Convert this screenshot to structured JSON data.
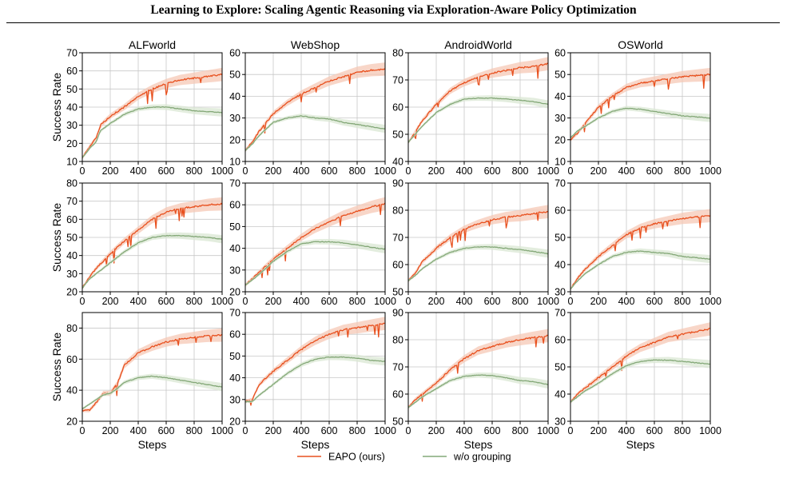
{
  "page": {
    "title": "Learning to Explore: Scaling Agentic Reasoning via Exploration-Aware Policy Optimization"
  },
  "colors": {
    "eapo": "#e8501e",
    "eapo_band": "#f6c8b6",
    "baseline": "#84a878",
    "baseline_band": "#dae7d3",
    "grid": "#c8c8c8"
  },
  "chart_data": {
    "type": "line",
    "layout": "grid 3 rows x 4 columns",
    "column_titles": [
      "ALFworld",
      "WebShop",
      "AndroidWorld",
      "OSWorld"
    ],
    "ylabel": "Success Rate",
    "xlabel": "Steps",
    "xlim": [
      0,
      1000
    ],
    "xticks": [
      0,
      200,
      400,
      600,
      800,
      1000
    ],
    "grid": true,
    "legend": {
      "placement": "bottom-center",
      "entries": [
        "EAPO (ours)",
        "w/o grouping"
      ]
    },
    "panels": [
      {
        "row": 0,
        "col": 0,
        "title": "ALFworld",
        "ylim": [
          10,
          70
        ],
        "yticks": [
          10,
          20,
          30,
          40,
          50,
          60,
          70
        ],
        "series": [
          {
            "name": "EAPO (ours)",
            "x": [
              0,
              50,
              100,
              130,
              200,
              300,
              400,
              500,
              600,
              700,
              800,
              900,
              1000
            ],
            "y": [
              12,
              18,
              23,
              30,
              35,
              40,
              46,
              50,
              53,
              55,
              56,
              57,
              58
            ]
          },
          {
            "name": "w/o grouping",
            "x": [
              0,
              50,
              100,
              130,
              200,
              300,
              400,
              500,
              600,
              700,
              800,
              900,
              1000
            ],
            "y": [
              12,
              17,
              21,
              27,
              31,
              36,
              39,
              40,
              40,
              39,
              38,
              37.5,
              37
            ]
          }
        ]
      },
      {
        "row": 0,
        "col": 1,
        "title": "WebShop",
        "ylim": [
          10,
          60
        ],
        "yticks": [
          10,
          20,
          30,
          40,
          50,
          60
        ],
        "series": [
          {
            "name": "EAPO (ours)",
            "x": [
              0,
              50,
              100,
              200,
              300,
              400,
              500,
              600,
              700,
              800,
              900,
              1000
            ],
            "y": [
              15,
              19,
              24,
              32,
              37,
              41,
              44,
              47,
              49,
              51,
              52,
              52.5
            ]
          },
          {
            "name": "w/o grouping",
            "x": [
              0,
              50,
              100,
              200,
              300,
              400,
              500,
              600,
              700,
              800,
              900,
              1000
            ],
            "y": [
              15,
              18,
              22,
              28,
              30,
              31,
              30,
              29.5,
              28,
              27,
              26,
              25
            ]
          }
        ]
      },
      {
        "row": 0,
        "col": 2,
        "title": "AndroidWorld",
        "ylim": [
          40,
          80
        ],
        "yticks": [
          40,
          50,
          60,
          70,
          80
        ],
        "series": [
          {
            "name": "EAPO (ours)",
            "x": [
              0,
              50,
              100,
              200,
              300,
              400,
              500,
              600,
              700,
              800,
              900,
              1000
            ],
            "y": [
              47,
              51,
              55,
              61,
              66,
              69,
              71,
              72.5,
              73.5,
              74.5,
              75,
              76
            ]
          },
          {
            "name": "w/o grouping",
            "x": [
              0,
              50,
              100,
              200,
              300,
              400,
              500,
              600,
              700,
              800,
              900,
              1000
            ],
            "y": [
              47,
              50,
              53,
              58,
              61,
              63,
              63.3,
              63.3,
              63,
              62.5,
              62,
              61
            ]
          }
        ]
      },
      {
        "row": 0,
        "col": 3,
        "title": "OSWorld",
        "ylim": [
          10,
          60
        ],
        "yticks": [
          10,
          20,
          30,
          40,
          50,
          60
        ],
        "series": [
          {
            "name": "EAPO (ours)",
            "x": [
              0,
              50,
              100,
              200,
              300,
              400,
              500,
              600,
              700,
              800,
              900,
              1000
            ],
            "y": [
              20,
              23,
              27,
              35,
              40,
              44,
              46,
              47,
              48,
              49,
              49.5,
              50
            ]
          },
          {
            "name": "w/o grouping",
            "x": [
              0,
              50,
              100,
              200,
              300,
              400,
              500,
              600,
              700,
              800,
              900,
              1000
            ],
            "y": [
              21,
              24,
              26,
              30,
              33,
              34.5,
              34,
              33,
              32,
              31,
              30.5,
              30
            ]
          }
        ]
      },
      {
        "row": 1,
        "col": 0,
        "title": "ALFworld",
        "ylim": [
          20,
          80
        ],
        "yticks": [
          20,
          30,
          40,
          50,
          60,
          70,
          80
        ],
        "series": [
          {
            "name": "EAPO (ours)",
            "x": [
              0,
              50,
              100,
              200,
              300,
              400,
              500,
              600,
              700,
              800,
              900,
              1000
            ],
            "y": [
              22,
              28,
              33,
              41,
              48,
              54,
              60,
              64,
              66,
              67,
              68,
              68.5
            ]
          },
          {
            "name": "w/o grouping",
            "x": [
              0,
              50,
              100,
              200,
              300,
              400,
              500,
              600,
              700,
              800,
              900,
              1000
            ],
            "y": [
              22,
              27,
              30,
              36,
              42,
              47,
              50,
              51,
              51,
              50.5,
              50,
              49
            ]
          }
        ]
      },
      {
        "row": 1,
        "col": 1,
        "title": "WebShop",
        "ylim": [
          20,
          70
        ],
        "yticks": [
          20,
          30,
          40,
          50,
          60,
          70
        ],
        "series": [
          {
            "name": "EAPO (ours)",
            "x": [
              0,
              50,
              100,
              200,
              300,
              400,
              500,
              600,
              700,
              800,
              900,
              1000
            ],
            "y": [
              23,
              26,
              29,
              35,
              40,
              45,
              49,
              52,
              55,
              57,
              59,
              60.5
            ]
          },
          {
            "name": "w/o grouping",
            "x": [
              0,
              50,
              100,
              200,
              300,
              400,
              500,
              600,
              700,
              800,
              900,
              1000
            ],
            "y": [
              23,
              25.5,
              28,
              34,
              38.5,
              42,
              43,
              43,
              42.5,
              41.5,
              40.5,
              39.5
            ]
          }
        ]
      },
      {
        "row": 1,
        "col": 2,
        "title": "AndroidWorld",
        "ylim": [
          50,
          90
        ],
        "yticks": [
          50,
          60,
          70,
          80,
          90
        ],
        "series": [
          {
            "name": "EAPO (ours)",
            "x": [
              0,
              50,
              100,
              200,
              300,
              400,
              500,
              600,
              700,
              800,
              900,
              1000
            ],
            "y": [
              54,
              57,
              61,
              66,
              70,
              73,
              75,
              76.5,
              77.5,
              78,
              78.8,
              79.5
            ]
          },
          {
            "name": "w/o grouping",
            "x": [
              0,
              50,
              100,
              200,
              300,
              400,
              500,
              600,
              700,
              800,
              900,
              1000
            ],
            "y": [
              54,
              56,
              58.5,
              62,
              64.5,
              66,
              66.5,
              66.5,
              66,
              65.5,
              64.8,
              64
            ]
          }
        ]
      },
      {
        "row": 1,
        "col": 3,
        "title": "OSWorld",
        "ylim": [
          30,
          70
        ],
        "yticks": [
          30,
          40,
          50,
          60,
          70
        ],
        "series": [
          {
            "name": "EAPO (ours)",
            "x": [
              0,
              50,
              100,
              200,
              300,
              400,
              500,
              600,
              700,
              800,
              900,
              1000
            ],
            "y": [
              31,
              35,
              38,
              43,
              47,
              51,
              53.5,
              55,
              56,
              57,
              57.5,
              58
            ]
          },
          {
            "name": "w/o grouping",
            "x": [
              0,
              50,
              100,
              200,
              300,
              400,
              500,
              600,
              700,
              800,
              900,
              1000
            ],
            "y": [
              31,
              34,
              36.5,
              40,
              43,
              44.5,
              45,
              44.5,
              44,
              43,
              42.5,
              42
            ]
          }
        ]
      },
      {
        "row": 2,
        "col": 0,
        "title": "ALFworld",
        "ylim": [
          20,
          90
        ],
        "yticks": [
          20,
          40,
          60,
          80
        ],
        "series": [
          {
            "name": "EAPO (ours)",
            "x": [
              0,
              50,
              100,
              150,
              200,
              250,
              300,
              400,
              500,
              600,
              700,
              800,
              900,
              1000
            ],
            "y": [
              27,
              27,
              32,
              38,
              38,
              44,
              56,
              64,
              68,
              71,
              73,
              74,
              75,
              75.5
            ]
          },
          {
            "name": "w/o grouping",
            "x": [
              0,
              50,
              100,
              150,
              200,
              250,
              300,
              400,
              500,
              600,
              700,
              800,
              900,
              1000
            ],
            "y": [
              28,
              31,
              34,
              37,
              38,
              41,
              45,
              48,
              49,
              48,
              46.5,
              45,
              43.5,
              42
            ]
          }
        ]
      },
      {
        "row": 2,
        "col": 1,
        "title": "WebShop",
        "ylim": [
          20,
          70
        ],
        "yticks": [
          20,
          30,
          40,
          50,
          60,
          70
        ],
        "series": [
          {
            "name": "EAPO (ours)",
            "x": [
              0,
              50,
              100,
              200,
              300,
              400,
              500,
              600,
              700,
              800,
              900,
              1000
            ],
            "y": [
              29,
              30,
              37,
              43,
              48,
              53,
              57,
              60,
              62,
              63,
              64,
              65
            ]
          },
          {
            "name": "w/o grouping",
            "x": [
              0,
              50,
              100,
              200,
              300,
              400,
              500,
              600,
              700,
              800,
              900,
              1000
            ],
            "y": [
              29,
              29,
              32,
              37,
              42,
              46,
              48.5,
              49.5,
              49.5,
              49,
              48,
              47.5
            ]
          }
        ]
      },
      {
        "row": 2,
        "col": 2,
        "title": "AndroidWorld",
        "ylim": [
          50,
          90
        ],
        "yticks": [
          50,
          60,
          70,
          80,
          90
        ],
        "series": [
          {
            "name": "EAPO (ours)",
            "x": [
              0,
              50,
              100,
              200,
              300,
              400,
              500,
              600,
              700,
              800,
              900,
              1000
            ],
            "y": [
              55,
              58,
              60,
              64,
              69,
              73,
              76,
              77.5,
              79,
              80,
              80.8,
              81.5
            ]
          },
          {
            "name": "w/o grouping",
            "x": [
              0,
              50,
              100,
              200,
              300,
              400,
              500,
              600,
              700,
              800,
              900,
              1000
            ],
            "y": [
              55,
              57,
              59,
              62,
              65,
              66.5,
              67,
              66.8,
              66,
              65,
              64.5,
              63.5
            ]
          }
        ]
      },
      {
        "row": 2,
        "col": 3,
        "title": "OSWorld",
        "ylim": [
          30,
          70
        ],
        "yticks": [
          30,
          40,
          50,
          60,
          70
        ],
        "series": [
          {
            "name": "EAPO (ours)",
            "x": [
              0,
              50,
              100,
              200,
              300,
              400,
              500,
              600,
              700,
              800,
              900,
              1000
            ],
            "y": [
              37,
              40,
              42,
              46,
              50,
              54,
              57,
              59,
              61,
              62,
              63,
              64
            ]
          },
          {
            "name": "w/o grouping",
            "x": [
              0,
              50,
              100,
              200,
              300,
              400,
              500,
              600,
              700,
              800,
              900,
              1000
            ],
            "y": [
              37,
              39,
              41,
              44,
              47.5,
              50.5,
              52,
              52.5,
              52.5,
              52,
              51.5,
              51
            ]
          }
        ]
      }
    ]
  }
}
